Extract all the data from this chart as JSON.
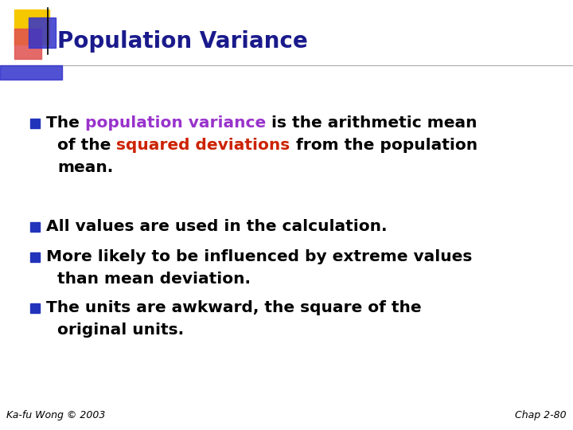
{
  "title": "Population Variance",
  "title_color": "#1a1a8c",
  "title_fontsize": 20,
  "background_color": "#ffffff",
  "bullet_color": "#2233bb",
  "text_color": "#000000",
  "highlight_color1": "#9933cc",
  "highlight_color2": "#cc2200",
  "footer_left": "Ka-fu Wong © 2003",
  "footer_right": "Chap 2-80",
  "footer_fontsize": 9,
  "logo_yellow_color": "#f5c800",
  "logo_red_color": "#e05050",
  "logo_blue_color": "#3333cc",
  "separator_color": "#aaaaaa",
  "main_fontsize": 14.5,
  "fig_width": 7.2,
  "fig_height": 5.4,
  "fig_dpi": 100
}
